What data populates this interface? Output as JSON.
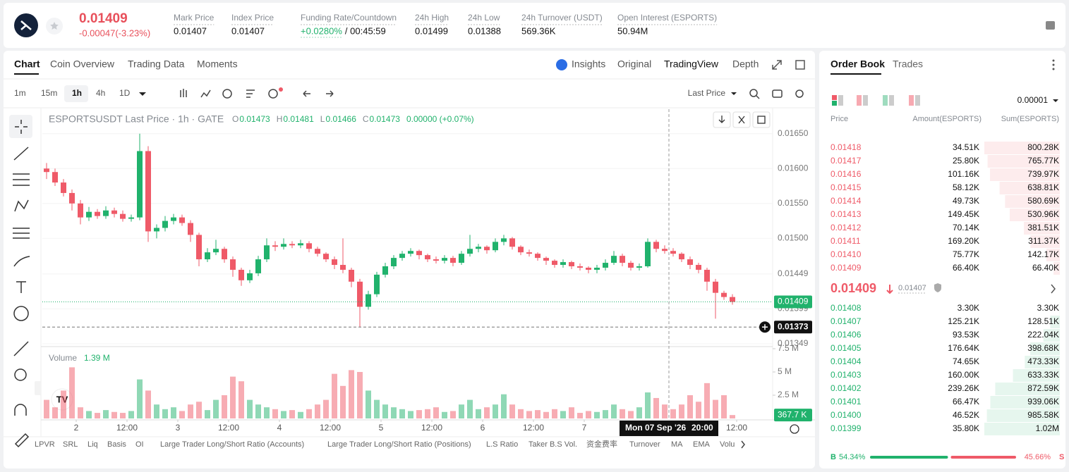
{
  "header": {
    "price": "0.01409",
    "change": "-0.00047(-3.23%)",
    "stats": [
      {
        "label": "Mark Price",
        "value": "0.01407"
      },
      {
        "label": "Index Price",
        "value": "0.01407"
      },
      {
        "label": "Funding Rate/Countdown",
        "value": "+0.0280%",
        "extra": "/ 00:45:59"
      },
      {
        "label": "24h High",
        "value": "0.01499"
      },
      {
        "label": "24h Low",
        "value": "0.01388"
      },
      {
        "label": "24h Turnover (USDT)",
        "value": "569.36K"
      },
      {
        "label": "Open Interest (ESPORTS)",
        "value": "50.94M"
      }
    ]
  },
  "tabs": [
    "Chart",
    "Coin Overview",
    "Trading Data",
    "Moments"
  ],
  "view_tabs": [
    "Insights",
    "Original",
    "TradingView",
    "Depth"
  ],
  "intervals": [
    "1m",
    "15m",
    "1h",
    "4h",
    "1D"
  ],
  "price_type": "Last Price",
  "chart_data": {
    "type": "candlestick",
    "title": "ESPORTSUSDT Last Price · 1h · GATE",
    "ohlc_legend": [
      {
        "key": "O",
        "value": "0.01473"
      },
      {
        "key": "H",
        "value": "0.01481"
      },
      {
        "key": "L",
        "value": "0.01466"
      },
      {
        "key": "C",
        "value": "0.01473"
      }
    ],
    "legend_change": "0.00000 (+0.07%)",
    "up_color": "#20b26c",
    "down_color": "#ef5a68",
    "open": [
      0.016,
      0.01595,
      0.0158,
      0.01565,
      0.0155,
      0.0153,
      0.01538,
      0.01532,
      0.0154,
      0.01535,
      0.01528,
      0.0153,
      0.01625,
      0.0151,
      0.01515,
      0.01525,
      0.0153,
      0.01522,
      0.01505,
      0.0147,
      0.0148,
      0.01485,
      0.0147,
      0.01455,
      0.0144,
      0.0145,
      0.0147,
      0.0149,
      0.01488,
      0.01492,
      0.0149,
      0.01493,
      0.01485,
      0.01478,
      0.0147,
      0.01462,
      0.01455,
      0.01438,
      0.01402,
      0.0142,
      0.01448,
      0.0146,
      0.01472,
      0.01478,
      0.01482,
      0.01476,
      0.0147,
      0.01468,
      0.01472,
      0.01465,
      0.01478,
      0.01485,
      0.01488,
      0.01483,
      0.01495,
      0.015,
      0.01488,
      0.0148,
      0.01478,
      0.01472,
      0.01468,
      0.01462,
      0.01466,
      0.0146,
      0.01458,
      0.01455,
      0.01458,
      0.01465,
      0.01475,
      0.01465,
      0.01458,
      0.0146,
      0.01495,
      0.01485,
      0.01482,
      0.01478,
      0.0147,
      0.01462,
      0.01455,
      0.01438,
      0.01422,
      0.01416
    ],
    "high": [
      0.01608,
      0.016,
      0.01585,
      0.0157,
      0.01555,
      0.01545,
      0.01542,
      0.01546,
      0.01544,
      0.0154,
      0.01534,
      0.0165,
      0.01632,
      0.0152,
      0.01532,
      0.01535,
      0.01534,
      0.01526,
      0.01508,
      0.01486,
      0.01498,
      0.01488,
      0.01474,
      0.01458,
      0.01455,
      0.01475,
      0.015,
      0.01496,
      0.015,
      0.01496,
      0.01498,
      0.01496,
      0.01488,
      0.0148,
      0.01474,
      0.015,
      0.01458,
      0.01442,
      0.01425,
      0.01452,
      0.01465,
      0.01476,
      0.01482,
      0.01486,
      0.01484,
      0.01478,
      0.01474,
      0.01476,
      0.01475,
      0.01482,
      0.01505,
      0.01492,
      0.0149,
      0.015,
      0.01505,
      0.01502,
      0.0149,
      0.01484,
      0.0148,
      0.01474,
      0.0147,
      0.0147,
      0.01468,
      0.01464,
      0.0146,
      0.01462,
      0.0147,
      0.01482,
      0.01478,
      0.01468,
      0.01464,
      0.015,
      0.01498,
      0.0149,
      0.01486,
      0.0148,
      0.01474,
      0.01465,
      0.01458,
      0.01442,
      0.01425,
      0.0142
    ],
    "low": [
      0.01585,
      0.01575,
      0.0156,
      0.0154,
      0.0152,
      0.01525,
      0.01528,
      0.01528,
      0.0153,
      0.01524,
      0.01524,
      0.01526,
      0.01495,
      0.015,
      0.0151,
      0.0152,
      0.01518,
      0.01495,
      0.0146,
      0.01466,
      0.01476,
      0.01465,
      0.01445,
      0.01432,
      0.01436,
      0.01446,
      0.01466,
      0.01482,
      0.01484,
      0.01486,
      0.01486,
      0.0148,
      0.01474,
      0.01466,
      0.01456,
      0.0145,
      0.0143,
      0.01373,
      0.01398,
      0.01416,
      0.01444,
      0.01456,
      0.01468,
      0.01474,
      0.0147,
      0.01466,
      0.01464,
      0.01464,
      0.0146,
      0.01462,
      0.01474,
      0.0148,
      0.01478,
      0.0148,
      0.0149,
      0.01484,
      0.01476,
      0.01474,
      0.01468,
      0.01462,
      0.01458,
      0.01458,
      0.01456,
      0.01454,
      0.0145,
      0.0145,
      0.01454,
      0.01462,
      0.0146,
      0.01454,
      0.01454,
      0.01458,
      0.0148,
      0.01478,
      0.01474,
      0.01466,
      0.01456,
      0.0145,
      0.01425,
      0.01385,
      0.01412,
      0.01405
    ],
    "close": [
      0.01595,
      0.0158,
      0.01565,
      0.0155,
      0.0153,
      0.01538,
      0.01532,
      0.0154,
      0.01535,
      0.01528,
      0.0153,
      0.01625,
      0.0151,
      0.01515,
      0.01525,
      0.0153,
      0.01522,
      0.01505,
      0.0147,
      0.0148,
      0.01485,
      0.0147,
      0.01455,
      0.0144,
      0.0145,
      0.0147,
      0.0149,
      0.01488,
      0.01492,
      0.0149,
      0.01493,
      0.01485,
      0.01478,
      0.0147,
      0.01462,
      0.01455,
      0.01438,
      0.01402,
      0.0142,
      0.01448,
      0.0146,
      0.01472,
      0.01478,
      0.01482,
      0.01476,
      0.0147,
      0.01468,
      0.01472,
      0.01465,
      0.01478,
      0.01485,
      0.01488,
      0.01483,
      0.01495,
      0.015,
      0.01488,
      0.0148,
      0.01478,
      0.01472,
      0.01468,
      0.01462,
      0.01466,
      0.0146,
      0.01458,
      0.01455,
      0.01458,
      0.01465,
      0.01475,
      0.01465,
      0.01458,
      0.0146,
      0.01495,
      0.01485,
      0.01482,
      0.01478,
      0.0147,
      0.01462,
      0.01455,
      0.01438,
      0.01422,
      0.01416,
      0.01409
    ],
    "volume_title": "Volume",
    "volume_value": "1.39 M",
    "volume": [
      2.0,
      1.2,
      3.0,
      5.5,
      1.2,
      0.8,
      0.6,
      0.9,
      0.7,
      0.6,
      0.8,
      4.2,
      3.0,
      1.5,
      1.0,
      1.2,
      0.8,
      1.5,
      1.8,
      0.9,
      2.0,
      2.5,
      4.5,
      4.0,
      2.0,
      1.5,
      1.2,
      1.0,
      0.8,
      0.9,
      0.7,
      1.0,
      1.5,
      2.0,
      4.8,
      3.5,
      5.2,
      5.0,
      3.0,
      2.0,
      1.5,
      1.2,
      1.0,
      0.8,
      0.9,
      1.0,
      1.2,
      0.7,
      0.8,
      1.5,
      2.0,
      1.0,
      1.2,
      1.5,
      2.6,
      1.5,
      1.0,
      0.8,
      0.9,
      0.7,
      1.0,
      0.8,
      1.2,
      0.6,
      0.8,
      0.7,
      0.9,
      1.5,
      1.0,
      0.8,
      1.2,
      2.8,
      2.2,
      1.5,
      1.0,
      1.5,
      2.5,
      1.8,
      3.8,
      2.0,
      2.5,
      0.3677
    ],
    "volume_last": {
      "value": 0.3677,
      "label": "367.7 K"
    },
    "xlim": [
      -0.5,
      85.75
    ],
    "xticks": [
      {
        "value": 3.5,
        "label": "2"
      },
      {
        "value": 9.5,
        "label": "12:00"
      },
      {
        "value": 15.5,
        "label": "3"
      },
      {
        "value": 21.5,
        "label": "12:00"
      },
      {
        "value": 27.5,
        "label": "4"
      },
      {
        "value": 33.5,
        "label": "12:00"
      },
      {
        "value": 39.5,
        "label": "5"
      },
      {
        "value": 45.5,
        "label": "12:00"
      },
      {
        "value": 51.5,
        "label": "6"
      },
      {
        "value": 57.5,
        "label": "12:00"
      },
      {
        "value": 63.5,
        "label": "7"
      },
      {
        "value": 81.5,
        "label": "12:00"
      }
    ],
    "ylim": [
      0.01347,
      0.01685
    ],
    "yticks": [
      {
        "value": 0.0165,
        "label": "0.01650"
      },
      {
        "value": 0.016,
        "label": "0.01600"
      },
      {
        "value": 0.0155,
        "label": "0.01550"
      },
      {
        "value": 0.015,
        "label": "0.01500"
      },
      0.01449,
      0.01399,
      0.01349
    ],
    "vlim": [
      0,
      7.5
    ],
    "vticks": [
      {
        "value": 7.5,
        "label": "7.5 M"
      },
      {
        "value": 5,
        "label": "5 M"
      },
      {
        "value": 2.5,
        "label": "2.5 M"
      }
    ],
    "crosshair": {
      "x": 73.5,
      "y": 0.01373,
      "date": "Mon 07 Sep '26",
      "time": "20:00"
    }
  },
  "indicators": [
    "LPVR",
    "SRL",
    "Liq",
    "Basis",
    "OI",
    "Large Trader Long/Short Ratio (Accounts)",
    "Large Trader Long/Short Ratio (Positions)",
    "L.S Ratio",
    "Taker B.S Vol.",
    "资金费率",
    "Turnover",
    "MA",
    "EMA",
    "Volume"
  ],
  "order_book": {
    "tabs": [
      "Order Book",
      "Trades"
    ],
    "precision": "0.00001",
    "columns": [
      "Price",
      "Amount(ESPORTS)",
      "Sum(ESPORTS)"
    ],
    "asks": [
      {
        "price": "0.01418",
        "amount": "34.51K",
        "sum": {
          "value": 800.28,
          "label": "800.28K"
        }
      },
      {
        "price": "0.01417",
        "amount": "25.80K",
        "sum": {
          "value": 765.77,
          "label": "765.77K"
        }
      },
      {
        "price": "0.01416",
        "amount": "101.16K",
        "sum": {
          "value": 739.97,
          "label": "739.97K"
        }
      },
      {
        "price": "0.01415",
        "amount": "58.12K",
        "sum": {
          "value": 638.81,
          "label": "638.81K"
        }
      },
      {
        "price": "0.01414",
        "amount": "49.73K",
        "sum": {
          "value": 580.69,
          "label": "580.69K"
        }
      },
      {
        "price": "0.01413",
        "amount": "149.45K",
        "sum": {
          "value": 530.96,
          "label": "530.96K"
        }
      },
      {
        "price": "0.01412",
        "amount": "70.14K",
        "sum": {
          "value": 381.51,
          "label": "381.51K"
        }
      },
      {
        "price": "0.01411",
        "amount": "169.20K",
        "sum": {
          "value": 311.37,
          "label": "311.37K"
        }
      },
      {
        "price": "0.01410",
        "amount": "75.77K",
        "sum": {
          "value": 142.17,
          "label": "142.17K"
        }
      },
      {
        "price": "0.01409",
        "amount": "66.40K",
        "sum": {
          "value": 66.4,
          "label": "66.40K"
        }
      }
    ],
    "last_price": "0.01409",
    "mark_price": "0.01407",
    "bids": [
      {
        "price": "0.01408",
        "amount": "3.30K",
        "sum": {
          "value": 3.3,
          "label": "3.30K"
        }
      },
      {
        "price": "0.01407",
        "amount": "125.21K",
        "sum": {
          "value": 128.51,
          "label": "128.51K"
        }
      },
      {
        "price": "0.01406",
        "amount": "93.53K",
        "sum": {
          "value": 222.04,
          "label": "222.04K"
        }
      },
      {
        "price": "0.01405",
        "amount": "176.64K",
        "sum": {
          "value": 398.68,
          "label": "398.68K"
        }
      },
      {
        "price": "0.01404",
        "amount": "74.65K",
        "sum": {
          "value": 473.33,
          "label": "473.33K"
        }
      },
      {
        "price": "0.01403",
        "amount": "160.00K",
        "sum": {
          "value": 633.33,
          "label": "633.33K"
        }
      },
      {
        "price": "0.01402",
        "amount": "239.26K",
        "sum": {
          "value": 872.59,
          "label": "872.59K"
        }
      },
      {
        "price": "0.01401",
        "amount": "66.47K",
        "sum": {
          "value": 939.06,
          "label": "939.06K"
        }
      },
      {
        "price": "0.01400",
        "amount": "46.52K",
        "sum": {
          "value": 985.58,
          "label": "985.58K"
        }
      },
      {
        "price": "0.01399",
        "amount": "35.80K",
        "sum": {
          "value": 1020,
          "label": "1.02M"
        }
      }
    ],
    "buy_key": "B",
    "buy": {
      "value": 54.34,
      "label": "54.34%"
    },
    "sell": {
      "value": 45.66,
      "label": "45.66%"
    },
    "sell_key": "S"
  }
}
